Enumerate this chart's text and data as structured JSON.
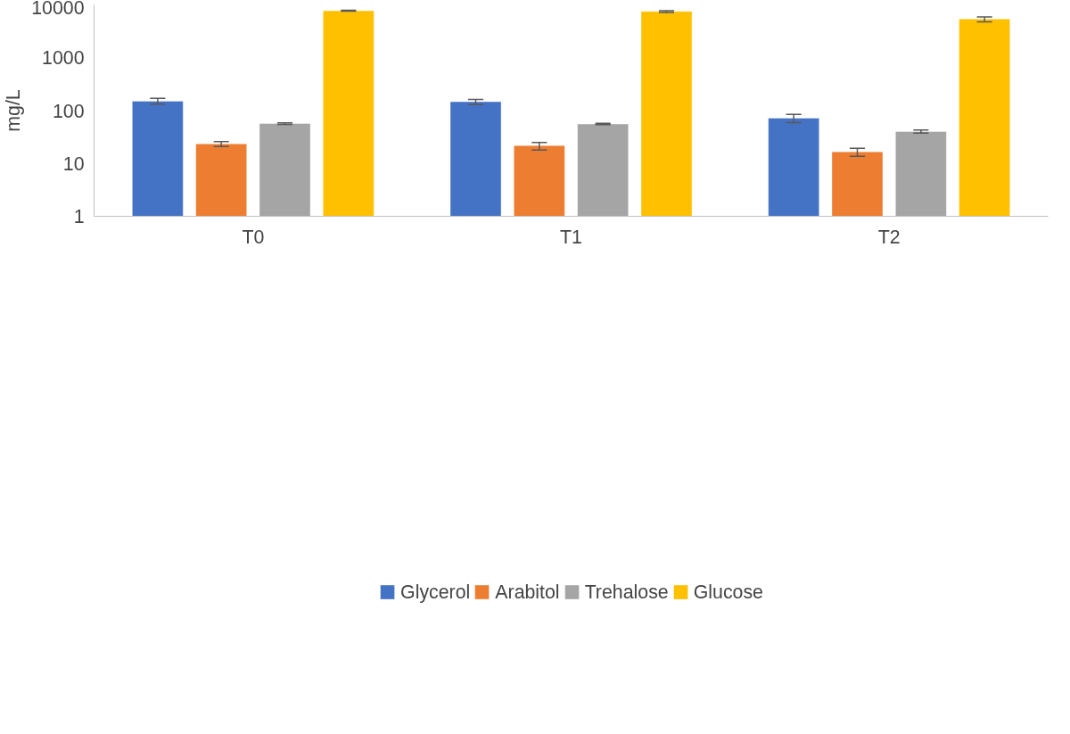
{
  "chart_data": {
    "type": "bar",
    "ylabel": "mg/L",
    "categories": [
      "T0",
      "T1",
      "T2"
    ],
    "log": true,
    "ylim": [
      1,
      10000
    ],
    "yticks": [
      1,
      10,
      100,
      1000,
      10000
    ],
    "grid": false,
    "legend": "bottom",
    "series": [
      {
        "name": "Glycerol",
        "color": "#4472c4",
        "values": [
          151,
          147,
          72
        ],
        "errors": [
          [
            133,
            170
          ],
          [
            130,
            162
          ],
          [
            59,
            85
          ]
        ]
      },
      {
        "name": "Arabitol",
        "color": "#ed7d31",
        "values": [
          23.4,
          21.8,
          16.6
        ],
        "errors": [
          [
            21,
            26
          ],
          [
            18,
            25
          ],
          [
            13.6,
            19.3
          ]
        ]
      },
      {
        "name": "Trehalose",
        "color": "#a5a5a5",
        "values": [
          57,
          55.7,
          40.2
        ],
        "errors": [
          [
            55,
            58.6
          ],
          [
            54,
            57.5
          ],
          [
            37.5,
            43
          ]
        ]
      },
      {
        "name": "Glucose",
        "color": "#ffc000",
        "values": [
          7740,
          7520,
          5420
        ],
        "errors": [
          [
            7600,
            7900
          ],
          [
            7200,
            7800
          ],
          [
            4800,
            5940
          ]
        ]
      }
    ]
  }
}
